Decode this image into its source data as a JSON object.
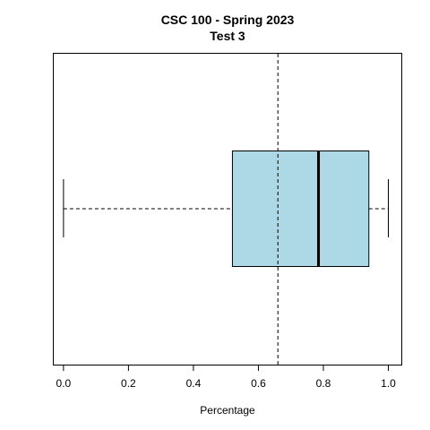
{
  "chart_data": {
    "type": "boxplot",
    "orientation": "horizontal",
    "title": "CSC 100 - Spring 2023",
    "subtitle": "Test 3",
    "xlabel": "Percentage",
    "ylabel": "",
    "xlim": [
      -0.03,
      1.04
    ],
    "xticks": [
      0.0,
      0.2,
      0.4,
      0.6,
      0.8,
      1.0
    ],
    "xtick_labels": [
      "0.0",
      "0.2",
      "0.4",
      "0.6",
      "0.8",
      "1.0"
    ],
    "box": {
      "min": 0.0,
      "q1": 0.52,
      "median": 0.785,
      "q3": 0.94,
      "max": 1.0
    },
    "mean_line": 0.66,
    "grid": false,
    "colors": {
      "box_fill": "#add8e6",
      "box_stroke": "#000000",
      "median": "#000000",
      "whisker": "#000000",
      "mean_line": "#000000"
    }
  }
}
